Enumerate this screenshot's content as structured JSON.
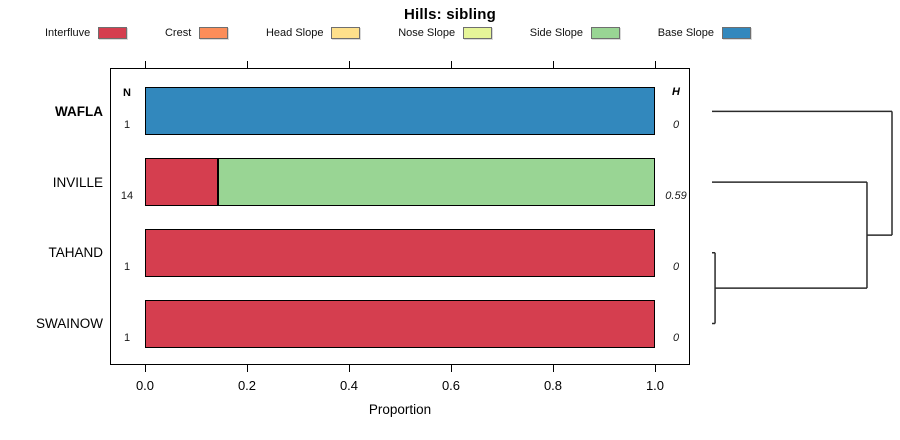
{
  "title": "Hills: sibling",
  "legend": {
    "items": [
      {
        "label": "Interfluve",
        "color": "#D53E4F"
      },
      {
        "label": "Crest",
        "color": "#FC8D59"
      },
      {
        "label": "Head Slope",
        "color": "#FEE08B"
      },
      {
        "label": "Nose Slope",
        "color": "#E6F598"
      },
      {
        "label": "Side Slope",
        "color": "#99D594"
      },
      {
        "label": "Base Slope",
        "color": "#3288BD"
      }
    ]
  },
  "columns": {
    "n_header": "N",
    "h_header": "H"
  },
  "axis": {
    "label": "Proportion",
    "ticks": [
      "0.0",
      "0.2",
      "0.4",
      "0.6",
      "0.8",
      "1.0"
    ],
    "tick_values": [
      0,
      0.2,
      0.4,
      0.6,
      0.8,
      1.0
    ]
  },
  "rows": [
    {
      "label": "WAFLA",
      "bold": true,
      "n": "1",
      "h": "0",
      "segments": [
        {
          "name": "Base Slope",
          "proportion": 1.0,
          "color": "#3288BD"
        }
      ]
    },
    {
      "label": "INVILLE",
      "bold": false,
      "n": "14",
      "h": "0.59",
      "segments": [
        {
          "name": "Interfluve",
          "proportion": 0.143,
          "color": "#D53E4F"
        },
        {
          "name": "Side Slope",
          "proportion": 0.857,
          "color": "#99D594"
        }
      ]
    },
    {
      "label": "TAHAND",
      "bold": false,
      "n": "1",
      "h": "0",
      "segments": [
        {
          "name": "Interfluve",
          "proportion": 1.0,
          "color": "#D53E4F"
        }
      ]
    },
    {
      "label": "SWAINOW",
      "bold": false,
      "n": "1",
      "h": "0",
      "segments": [
        {
          "name": "Interfluve",
          "proportion": 1.0,
          "color": "#D53E4F"
        }
      ]
    }
  ],
  "dendrogram": {
    "leaf_order": [
      "WAFLA",
      "INVILLE",
      "TAHAND",
      "SWAINOW"
    ],
    "merges": [
      {
        "a": "TAHAND",
        "b": "SWAINOW",
        "height": 0.017
      },
      {
        "a": "merge0",
        "b": "INVILLE",
        "height": 0.861
      },
      {
        "a": "merge1",
        "b": "WAFLA",
        "height": 1.0
      }
    ]
  },
  "chart_data": {
    "type": "bar",
    "orientation": "horizontal",
    "stacked": true,
    "title": "Hills: sibling",
    "xlabel": "Proportion",
    "xlim": [
      0,
      1
    ],
    "xticks": [
      0.0,
      0.2,
      0.4,
      0.6,
      0.8,
      1.0
    ],
    "grid": false,
    "categories": [
      "WAFLA",
      "INVILLE",
      "TAHAND",
      "SWAINOW"
    ],
    "series": [
      {
        "name": "Interfluve",
        "color": "#D53E4F",
        "values": [
          0,
          0.143,
          1.0,
          1.0
        ]
      },
      {
        "name": "Crest",
        "color": "#FC8D59",
        "values": [
          0,
          0,
          0,
          0
        ]
      },
      {
        "name": "Head Slope",
        "color": "#FEE08B",
        "values": [
          0,
          0,
          0,
          0
        ]
      },
      {
        "name": "Nose Slope",
        "color": "#E6F598",
        "values": [
          0,
          0,
          0,
          0
        ]
      },
      {
        "name": "Side Slope",
        "color": "#99D594",
        "values": [
          0,
          0.857,
          0,
          0
        ]
      },
      {
        "name": "Base Slope",
        "color": "#3288BD",
        "values": [
          1.0,
          0,
          0,
          0
        ]
      }
    ],
    "annotations": {
      "N_column": [
        1,
        14,
        1,
        1
      ],
      "H_shannon_entropy": [
        0,
        0.59,
        0,
        0
      ],
      "bold_category": "WAFLA"
    },
    "legend_position": "top",
    "dendrogram_note": "Right-side cluster tree: TAHAND+SWAINOW merge near height 0; that pair joins INVILLE at ~0.86 of max height; WAFLA joins last at max height."
  }
}
